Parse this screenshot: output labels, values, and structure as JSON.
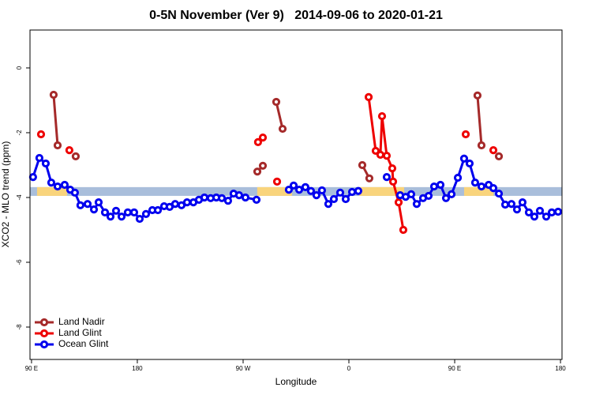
{
  "chart_data": {
    "type": "line",
    "title": "0-5N November (Ver 9)   2014-09-06 to 2020-01-21",
    "xlabel": "Longitude",
    "ylabel": "XCO2 - MLO trend (ppm)",
    "xlim": [
      88.7,
      541.3
    ],
    "ylim": [
      -9.0,
      1.17
    ],
    "xticks": [
      {
        "value": 90,
        "label": "90 E"
      },
      180,
      {
        "value": 270,
        "label": "90 W"
      },
      {
        "value": 360,
        "label": "0"
      },
      {
        "value": 450,
        "label": "90 E"
      },
      {
        "value": 540,
        "label": "180"
      }
    ],
    "yticks": [
      0,
      -2,
      -4,
      -6,
      -8
    ],
    "legend": "bottom-left",
    "band": {
      "ylim": [
        -3.95,
        -3.68
      ],
      "color": "#a9bedb",
      "land_color": "#f9d47c",
      "land_segments": [
        [
          94.7,
          120.2
        ],
        [
          282.0,
          311.6
        ],
        [
          368.7,
          407.0
        ],
        [
          458.0,
          483.0
        ]
      ]
    },
    "series": [
      {
        "name": "Land Nadir",
        "color": "#a52a2a",
        "x": [
          108.8,
          112.2,
          127.6,
          282.1,
          286.8,
          298.2,
          303.6,
          371.4,
          377.4,
          469.4,
          472.8,
          487.6
        ],
        "values": [
          -0.83,
          -2.39,
          -2.73,
          -3.2,
          -3.02,
          -1.05,
          -1.88,
          -3.0,
          -3.41,
          -0.85,
          -2.39,
          -2.73
        ]
      },
      {
        "name": "Land Glint",
        "color": "#ee0000",
        "x": [
          98.1,
          122.2,
          282.7,
          286.8,
          298.9,
          376.8,
          382.8,
          386.8,
          388.2,
          392.2,
          396.9,
          397.6,
          402.3,
          406.3,
          459.4,
          482.9
        ],
        "values": [
          -2.05,
          -2.54,
          -2.29,
          -2.15,
          -3.51,
          -0.9,
          -2.56,
          -2.68,
          -1.49,
          -2.71,
          -3.1,
          -3.51,
          -4.15,
          -5.0,
          -2.05,
          -2.54
        ]
      },
      {
        "name": "Ocean Glint",
        "color": "#0000ee",
        "x": [
          91.3,
          96.7,
          102.1,
          106.8,
          112.2,
          118.2,
          122.9,
          126.9,
          131.6,
          137.7,
          143.1,
          147.1,
          152.5,
          157.2,
          161.9,
          166.6,
          171.9,
          177.3,
          182.0,
          187.4,
          192.8,
          197.5,
          202.8,
          207.5,
          212.2,
          217.6,
          222.3,
          227.7,
          232.4,
          237.1,
          242.4,
          247.2,
          251.9,
          257.2,
          261.9,
          266.6,
          272.0,
          281.4,
          308.9,
          313.0,
          317.7,
          323.0,
          327.7,
          332.4,
          337.1,
          342.5,
          347.2,
          352.6,
          357.3,
          362.7,
          368.0,
          392.2,
          403.6,
          408.3,
          413.0,
          417.7,
          423.1,
          427.8,
          432.5,
          437.9,
          442.6,
          447.3,
          452.7,
          458.0,
          462.7,
          467.4,
          472.8,
          478.9,
          482.9,
          487.6,
          493.0,
          498.3,
          503.0,
          507.7,
          513.1,
          517.8,
          522.5,
          527.9,
          532.6,
          538.0
        ],
        "values": [
          -3.37,
          -2.78,
          -2.95,
          -3.54,
          -3.66,
          -3.61,
          -3.76,
          -3.85,
          -4.24,
          -4.2,
          -4.37,
          -4.15,
          -4.46,
          -4.59,
          -4.41,
          -4.59,
          -4.46,
          -4.46,
          -4.66,
          -4.51,
          -4.39,
          -4.39,
          -4.27,
          -4.29,
          -4.2,
          -4.24,
          -4.15,
          -4.15,
          -4.07,
          -4.0,
          -4.02,
          -4.0,
          -4.02,
          -4.1,
          -3.88,
          -3.93,
          -4.0,
          -4.07,
          -3.76,
          -3.63,
          -3.76,
          -3.68,
          -3.8,
          -3.93,
          -3.78,
          -4.2,
          -4.05,
          -3.85,
          -4.05,
          -3.83,
          -3.8,
          -3.37,
          -3.93,
          -3.98,
          -3.9,
          -4.2,
          -4.02,
          -3.95,
          -3.66,
          -3.61,
          -4.02,
          -3.9,
          -3.39,
          -2.8,
          -2.95,
          -3.54,
          -3.66,
          -3.61,
          -3.71,
          -3.88,
          -4.22,
          -4.2,
          -4.37,
          -4.15,
          -4.46,
          -4.59,
          -4.41,
          -4.59,
          -4.46,
          -4.44
        ]
      }
    ]
  }
}
